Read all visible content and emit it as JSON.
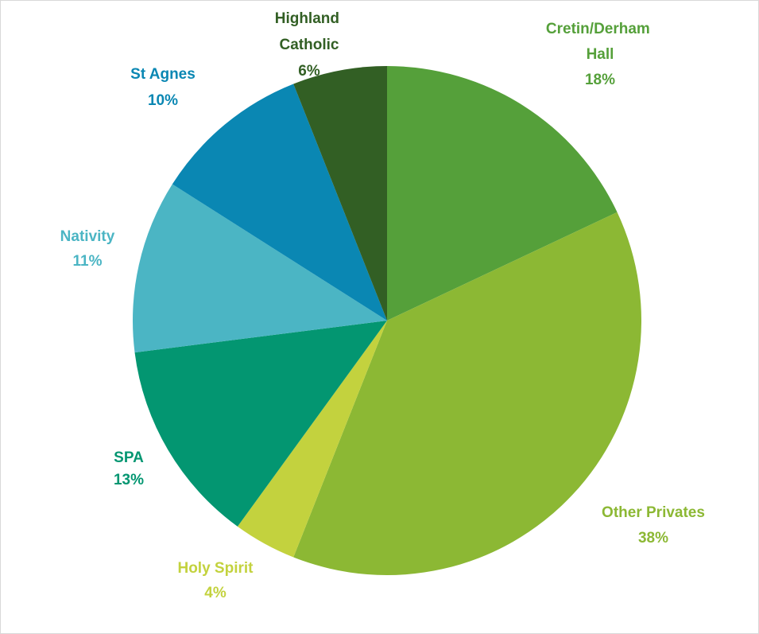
{
  "chart_data": {
    "type": "pie",
    "categories": [
      "Cretin/Derham Hall",
      "Other Privates",
      "Holy Spirit",
      "SPA",
      "Nativity",
      "St Agnes",
      "Highland Catholic"
    ],
    "values": [
      18,
      38,
      4,
      13,
      11,
      10,
      6
    ],
    "value_labels": [
      "18%",
      "38%",
      "4%",
      "13%",
      "11%",
      "10%",
      "6%"
    ],
    "colors": [
      "#55a03a",
      "#8cb834",
      "#c3d23e",
      "#039671",
      "#4bb5c4",
      "#0a87b3",
      "#325f24"
    ]
  }
}
